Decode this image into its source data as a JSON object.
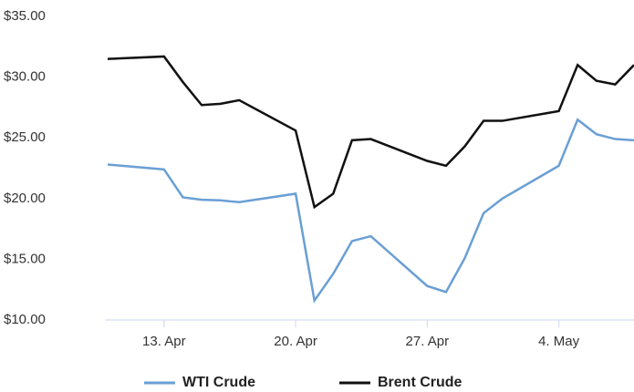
{
  "chart_data": {
    "type": "line",
    "x": [
      "04-10",
      "04-13",
      "04-14",
      "04-15",
      "04-16",
      "04-17",
      "04-20",
      "04-21",
      "04-22",
      "04-23",
      "04-24",
      "04-27",
      "04-28",
      "04-29",
      "04-30",
      "05-01",
      "05-04",
      "05-05",
      "05-06",
      "05-07",
      "05-08"
    ],
    "series": [
      {
        "name": "WTI Crude",
        "color": "#6a9fd4",
        "values": [
          22.8,
          22.4,
          20.1,
          19.9,
          19.85,
          19.7,
          20.4,
          11.6,
          13.8,
          16.5,
          16.9,
          12.8,
          12.3,
          15.1,
          18.8,
          20.0,
          22.7,
          26.5,
          25.3,
          24.9,
          24.8
        ]
      },
      {
        "name": "Brent Crude",
        "color": "#111111",
        "values": [
          31.5,
          31.7,
          29.6,
          27.7,
          27.8,
          28.1,
          25.6,
          19.3,
          20.4,
          24.8,
          24.9,
          23.1,
          22.7,
          24.3,
          26.4,
          26.4,
          27.2,
          31.0,
          29.7,
          29.4,
          31.0
        ]
      }
    ],
    "xlim": [
      "04-10",
      "05-08"
    ],
    "xticks": [
      {
        "value": "04-13",
        "label": "13. Apr"
      },
      {
        "value": "04-20",
        "label": "20. Apr"
      },
      {
        "value": "04-27",
        "label": "27. Apr"
      },
      {
        "value": "05-04",
        "label": "4. May"
      }
    ],
    "ylim": [
      10,
      35
    ],
    "yticks": [
      {
        "value": 10,
        "label": "$10.00"
      },
      {
        "value": 15,
        "label": "$15.00"
      },
      {
        "value": 20,
        "label": "$20.00"
      },
      {
        "value": 25,
        "label": "$25.00"
      },
      {
        "value": 30,
        "label": "$30.00"
      },
      {
        "value": 35,
        "label": "$35.00"
      }
    ],
    "legend": "bottom"
  }
}
